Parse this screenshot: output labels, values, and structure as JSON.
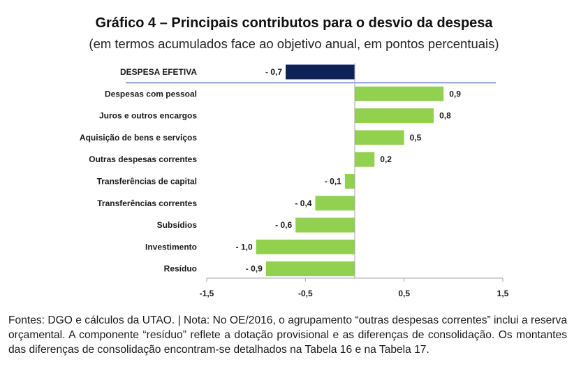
{
  "title": "Gráfico 4 – Principais contributos para o desvio da despesa",
  "subtitle": "(em termos acumulados face ao objetivo anual, em pontos percentuais)",
  "footnote": "Fontes: DGO e cálculos da UTAO. | Nota: No OE/2016, o agrupamento “outras despesas correntes” inclui a reserva orçamental. A componente “resíduo” reflete a dotação provisional e as diferenças de consolidação. Os montantes das diferenças de consolidação encontram-se detalhados na Tabela 16 e na Tabela 17.",
  "colors": {
    "total": "#0f2258",
    "item": "#92d050",
    "separator": "#4472c4",
    "axis": "#a6a6a6"
  },
  "chart_data": {
    "type": "bar",
    "orientation": "horizontal",
    "title": "Gráfico 4 – Principais contributos para o desvio da despesa",
    "subtitle": "(em termos acumulados face ao objetivo anual, em pontos percentuais)",
    "xlim": [
      -1.5,
      1.5
    ],
    "xticks": [
      -1.5,
      -0.5,
      0.5,
      1.5
    ],
    "xtick_labels": [
      "-1,5",
      "-0,5",
      "0,5",
      "1,5"
    ],
    "categories": [
      "DESPESA EFETIVA",
      "Despesas com pessoal",
      "Juros e outros encargos",
      "Aquisição de bens e serviços",
      "Outras despesas correntes",
      "Transferências de capital",
      "Transferências correntes",
      "Subsídios",
      "Investimento",
      "Resíduo"
    ],
    "values": [
      -0.7,
      0.9,
      0.8,
      0.5,
      0.2,
      -0.1,
      -0.4,
      -0.6,
      -1.0,
      -0.9
    ],
    "value_labels": [
      "- 0,7",
      "0,9",
      "0,8",
      "0,5",
      "0,2",
      "- 0,1",
      "- 0,4",
      "- 0,6",
      "- 1,0",
      "- 0,9"
    ],
    "highlight": "DESPESA EFETIVA",
    "legend": "none",
    "grid": false
  }
}
